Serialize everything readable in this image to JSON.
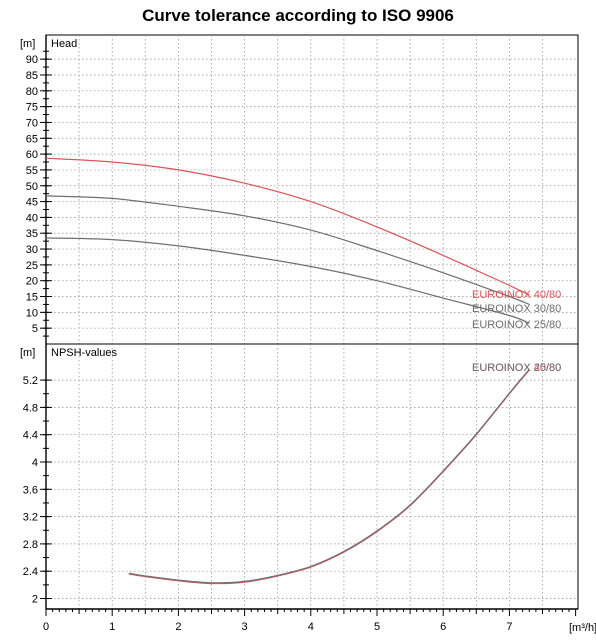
{
  "chart_data": [
    {
      "type": "line",
      "panel": "head",
      "title": "Curve tolerance according to ISO 9906",
      "ylabel": "[m]",
      "panel_label": "Head",
      "xlim": [
        0,
        8
      ],
      "ylim": [
        0,
        95
      ],
      "x_ticks": [
        0,
        1,
        2,
        3,
        4,
        5,
        6,
        7
      ],
      "y_ticks": [
        5,
        10,
        15,
        20,
        25,
        30,
        35,
        40,
        45,
        50,
        55,
        60,
        65,
        70,
        75,
        80,
        85,
        90
      ],
      "grid": true,
      "series": [
        {
          "name": "EUROINOX 40/80",
          "color": "#d9555c",
          "x": [
            0,
            1,
            2,
            3,
            4,
            5,
            6,
            7,
            7.3
          ],
          "y": [
            58.7,
            57.5,
            55.0,
            50.8,
            45.0,
            37.0,
            28.0,
            18.5,
            15.5
          ]
        },
        {
          "name": "EUROINOX 30/80",
          "color": "#6e6e6e",
          "x": [
            0,
            1,
            2,
            3,
            4,
            5,
            6,
            7,
            7.3
          ],
          "y": [
            46.8,
            46.0,
            43.5,
            40.5,
            36.0,
            29.5,
            22.5,
            15.0,
            12.5
          ]
        },
        {
          "name": "EUROINOX 25/80",
          "color": "#6e6e6e",
          "x": [
            0,
            1,
            2,
            3,
            4,
            5,
            6,
            7,
            7.3
          ],
          "y": [
            33.5,
            33.0,
            31.0,
            28.0,
            24.5,
            20.0,
            14.5,
            9.0,
            6.5
          ]
        }
      ]
    },
    {
      "type": "line",
      "panel": "npsh",
      "ylabel": "[m]",
      "panel_label": "NPSH-values",
      "xlabel": "[m³/h]",
      "xlim": [
        0,
        8
      ],
      "ylim": [
        1.9,
        5.45
      ],
      "x_ticks": [
        0,
        1,
        2,
        3,
        4,
        5,
        6,
        7
      ],
      "y_ticks": [
        2,
        2.4,
        2.8,
        3.2,
        3.6,
        4,
        4.4,
        4.8,
        5.2
      ],
      "grid": true,
      "series": [
        {
          "name": "EUROINOX 40/80",
          "color": "#d9555c",
          "x": [
            1.25,
            1.5,
            2.0,
            2.5,
            3.0,
            3.5,
            4.0,
            4.5,
            5.0,
            5.5,
            6.0,
            6.5,
            7.0,
            7.3
          ],
          "y": [
            2.36,
            2.32,
            2.26,
            2.22,
            2.24,
            2.33,
            2.46,
            2.68,
            2.98,
            3.36,
            3.86,
            4.4,
            5.0,
            5.35
          ]
        },
        {
          "name": "EUROINOX 25/80",
          "color": "#6e6e6e",
          "x": [
            1.25,
            1.5,
            2.0,
            2.5,
            3.0,
            3.5,
            4.0,
            4.5,
            5.0,
            5.5,
            6.0,
            6.5,
            7.0,
            7.3
          ],
          "y": [
            2.37,
            2.33,
            2.27,
            2.23,
            2.25,
            2.34,
            2.47,
            2.69,
            2.99,
            3.37,
            3.87,
            4.41,
            5.01,
            5.36
          ]
        }
      ]
    }
  ]
}
